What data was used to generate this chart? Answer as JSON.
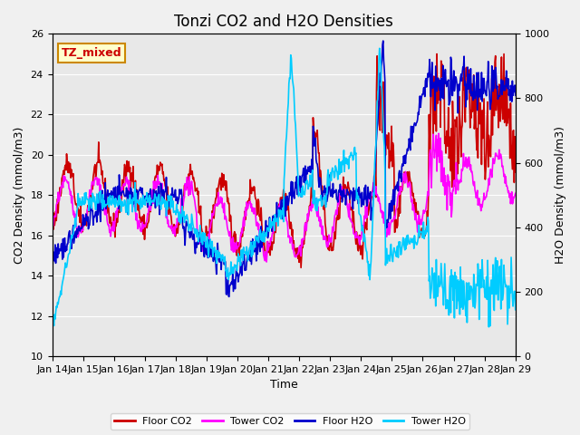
{
  "title": "Tonzi CO2 and H2O Densities",
  "xlabel": "Time",
  "ylabel_left": "CO2 Density (mmol/m3)",
  "ylabel_right": "H2O Density (mmol/m3)",
  "ylim_left": [
    10,
    26
  ],
  "ylim_right": [
    0,
    1000
  ],
  "annotation_text": "TZ_mixed",
  "annotation_color": "#cc0000",
  "annotation_bg": "#ffffcc",
  "annotation_border": "#cc8800",
  "xtick_labels": [
    "Jan 14",
    "Jan 15",
    "Jan 16",
    "Jan 17",
    "Jan 18",
    "Jan 19",
    "Jan 20",
    "Jan 21",
    "Jan 22",
    "Jan 23",
    "Jan 24",
    "Jan 25",
    "Jan 26",
    "Jan 27",
    "Jan 28",
    "Jan 29"
  ],
  "legend_labels": [
    "Floor CO2",
    "Tower CO2",
    "Floor H2O",
    "Tower H2O"
  ],
  "line_colors": [
    "#cc0000",
    "#ff00ff",
    "#0000cc",
    "#00ccff"
  ],
  "background_color": "#e8e8e8",
  "grid_color": "#ffffff",
  "title_fontsize": 12,
  "label_fontsize": 9,
  "tick_fontsize": 8
}
